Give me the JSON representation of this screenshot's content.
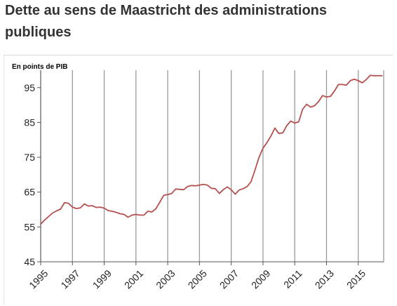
{
  "title": "Dette au sens de Maastricht des administrations publiques",
  "colors": {
    "line": "#b5504e",
    "grid": "#9a9a9a",
    "axis": "#555555",
    "title": "#333333"
  },
  "chart_data": {
    "type": "line",
    "title": "",
    "ylabel": "En points de PIB",
    "xlabel": "",
    "ylim": [
      45,
      100
    ],
    "xlim": [
      1995,
      2016.6
    ],
    "yticks": [
      45,
      55,
      65,
      75,
      85,
      95
    ],
    "xticks": [
      "1995",
      "1997",
      "1999",
      "2001",
      "2003",
      "2005",
      "2007",
      "2009",
      "2011",
      "2013",
      "2015"
    ],
    "grid": "vertical lines at x ticks",
    "series": [
      {
        "x": [
          1995.0,
          1995.25,
          1995.5,
          1995.75,
          1996.0,
          1996.25,
          1996.5,
          1996.75,
          1997.0,
          1997.25,
          1997.5,
          1997.75,
          1998.0,
          1998.25,
          1998.5,
          1998.75,
          1999.0,
          1999.25,
          1999.5,
          1999.75,
          2000.0,
          2000.25,
          2000.5,
          2000.75,
          2001.0,
          2001.25,
          2001.5,
          2001.75,
          2002.0,
          2002.25,
          2002.5,
          2002.75,
          2003.0,
          2003.25,
          2003.5,
          2003.75,
          2004.0,
          2004.25,
          2004.5,
          2004.75,
          2005.0,
          2005.25,
          2005.5,
          2005.75,
          2006.0,
          2006.25,
          2006.5,
          2006.75,
          2007.0,
          2007.25,
          2007.5,
          2007.75,
          2008.0,
          2008.25,
          2008.5,
          2008.75,
          2009.0,
          2009.25,
          2009.5,
          2009.75,
          2010.0,
          2010.25,
          2010.5,
          2010.75,
          2011.0,
          2011.25,
          2011.5,
          2011.75,
          2012.0,
          2012.25,
          2012.5,
          2012.75,
          2013.0,
          2013.25,
          2013.5,
          2013.75,
          2014.0,
          2014.25,
          2014.5,
          2014.75,
          2015.0,
          2015.25,
          2015.5,
          2015.75,
          2016.0,
          2016.25,
          2016.5
        ],
        "values": [
          55.8,
          57.0,
          58.0,
          59.0,
          59.6,
          60.1,
          62.0,
          61.8,
          60.7,
          60.3,
          60.5,
          61.6,
          61.0,
          61.1,
          60.6,
          60.7,
          60.4,
          59.7,
          59.5,
          59.2,
          58.8,
          58.6,
          57.8,
          58.4,
          58.6,
          58.4,
          58.4,
          59.5,
          59.3,
          60.2,
          62.1,
          64.1,
          64.3,
          64.6,
          65.9,
          65.8,
          65.7,
          66.6,
          66.9,
          66.8,
          67.0,
          67.2,
          67.0,
          66.1,
          66.0,
          64.6,
          65.7,
          66.5,
          65.7,
          64.4,
          65.6,
          66.0,
          66.6,
          68.0,
          71.4,
          75.0,
          77.6,
          79.2,
          81.1,
          83.4,
          81.8,
          82.0,
          84.1,
          85.4,
          84.8,
          85.2,
          88.8,
          90.2,
          89.4,
          89.8,
          91.0,
          92.7,
          92.3,
          92.5,
          94.0,
          95.9,
          95.9,
          95.7,
          97.0,
          97.4,
          97.0,
          96.4,
          97.3,
          98.5,
          98.4,
          98.4,
          98.4
        ]
      }
    ]
  }
}
